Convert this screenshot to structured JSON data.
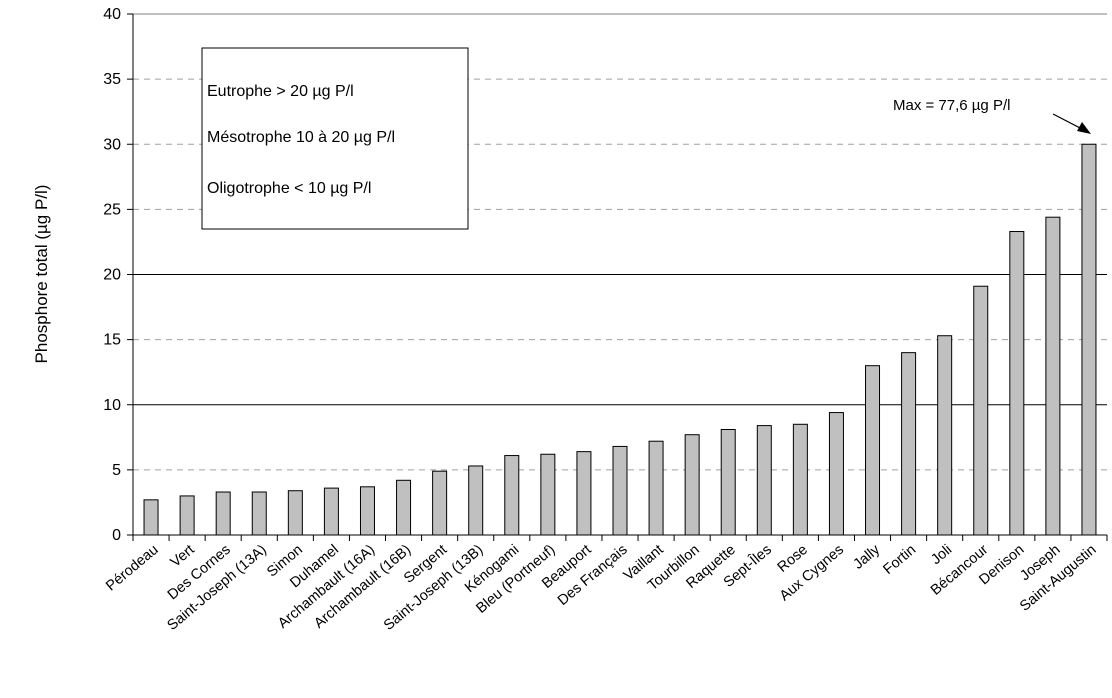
{
  "chart_data": {
    "type": "bar",
    "title": "",
    "xlabel": "",
    "ylabel": "Phosphore total (µg P/l)",
    "ylim": [
      0,
      40
    ],
    "yticks": [
      0,
      5,
      10,
      15,
      20,
      25,
      30,
      35,
      40
    ],
    "grid": "dashed horizontal at 5, 15, 25, 35",
    "thresholds": [
      10,
      20
    ],
    "bar_color": "#c0c0c0",
    "categories": [
      "Pérodeau",
      "Vert",
      "Des Cornes",
      "Saint-Joseph (13A)",
      "Simon",
      "Duhamel",
      "Archambault (16A)",
      "Archambault (16B)",
      "Sergent",
      "Saint-Joseph (13B)",
      "Kénogami",
      "Bleu (Portneuf)",
      "Beauport",
      "Des Français",
      "Vaillant",
      "Tourbillon",
      "Raquette",
      "Sept-Îles",
      "Rose",
      "Aux Cygnes",
      "Jally",
      "Fortin",
      "Joli",
      "Bécancour",
      "Denison",
      "Joseph",
      "Saint-Augustin"
    ],
    "values": [
      2.7,
      3.0,
      3.3,
      3.3,
      3.4,
      3.6,
      3.7,
      4.2,
      4.9,
      5.3,
      6.1,
      6.2,
      6.4,
      6.8,
      7.2,
      7.7,
      8.1,
      8.4,
      8.5,
      9.4,
      13.0,
      14.0,
      15.3,
      19.1,
      23.3,
      24.4,
      30.0
    ],
    "legend_box": {
      "lines": [
        "Eutrophe > 20 µg P/l",
        "Mésotrophe 10 à 20 µg P/l",
        "Oligotrophe  < 10 µg P/l"
      ],
      "placement": "top-left"
    },
    "annotation": {
      "text": "Max = 77,6 µg P/l",
      "target": "Saint-Augustin"
    }
  }
}
